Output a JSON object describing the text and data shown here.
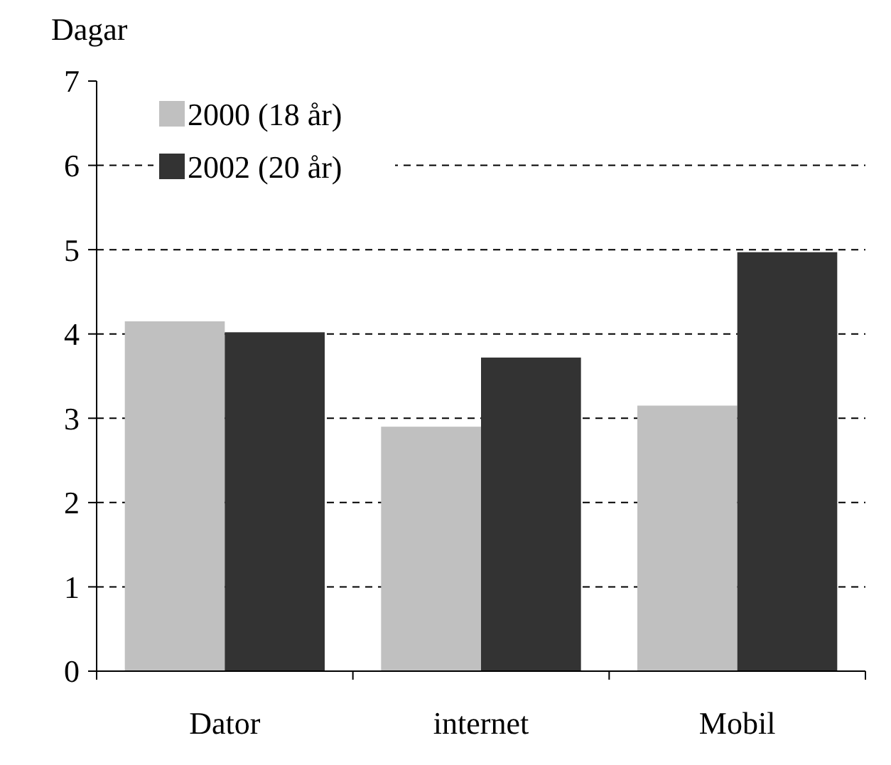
{
  "chart_data": {
    "type": "bar",
    "ylabel": "Dagar",
    "categories": [
      "Dator",
      "internet",
      "Mobil"
    ],
    "series": [
      {
        "name": "2000 (18 år)",
        "color": "#c0c0c0",
        "values": [
          4.15,
          2.9,
          3.15
        ]
      },
      {
        "name": "2002 (20 år)",
        "color": "#333333",
        "values": [
          4.02,
          3.72,
          4.97
        ]
      }
    ],
    "ylim": [
      0,
      7
    ],
    "yticks": [
      0,
      1,
      2,
      3,
      4,
      5,
      6,
      7
    ],
    "grid": "y",
    "legend": "top left"
  }
}
